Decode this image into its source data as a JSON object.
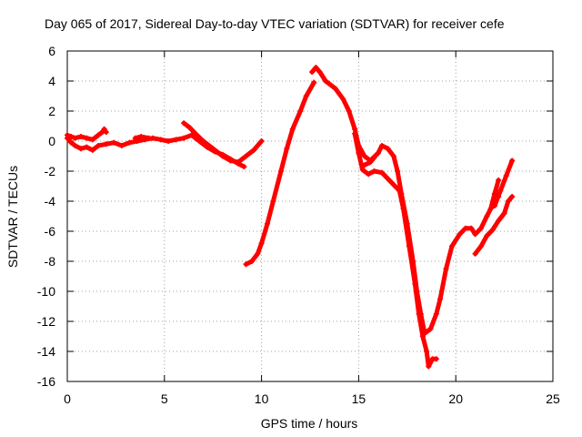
{
  "chart_data": {
    "type": "scatter",
    "title": "Day 065 of 2017, Sidereal Day-to-day VTEC variation (SDTVAR) for receiver cefe",
    "xlabel": "GPS time / hours",
    "ylabel": "SDTVAR / TECUs",
    "xlim": [
      0,
      25
    ],
    "ylim": [
      -16,
      6
    ],
    "xticks": [
      0,
      5,
      10,
      15,
      20,
      25
    ],
    "yticks": [
      -16,
      -14,
      -12,
      -10,
      -8,
      -6,
      -4,
      -2,
      0,
      2,
      4,
      6
    ],
    "grid": true,
    "legend": "none",
    "series": [
      {
        "color": "#ff0000",
        "marker": "plus",
        "segments": [
          [
            [
              0.0,
              0.4
            ],
            [
              0.2,
              0.3
            ],
            [
              0.4,
              0.2
            ],
            [
              0.7,
              0.3
            ],
            [
              1.0,
              0.2
            ],
            [
              1.3,
              0.1
            ],
            [
              1.6,
              0.4
            ],
            [
              1.8,
              0.6
            ],
            [
              1.9,
              0.8
            ],
            [
              2.0,
              0.6
            ]
          ],
          [
            [
              0.0,
              0.2
            ],
            [
              0.2,
              -0.1
            ],
            [
              0.4,
              -0.3
            ],
            [
              0.7,
              -0.5
            ],
            [
              1.0,
              -0.4
            ],
            [
              1.3,
              -0.6
            ],
            [
              1.6,
              -0.3
            ],
            [
              2.0,
              -0.2
            ],
            [
              2.4,
              -0.1
            ],
            [
              2.8,
              -0.3
            ],
            [
              3.2,
              -0.1
            ],
            [
              3.6,
              0.0
            ],
            [
              4.0,
              0.1
            ],
            [
              4.4,
              0.2
            ],
            [
              4.8,
              0.1
            ],
            [
              5.2,
              0.0
            ],
            [
              5.6,
              0.1
            ],
            [
              6.0,
              0.2
            ],
            [
              6.4,
              0.4
            ],
            [
              6.8,
              0.0
            ],
            [
              7.2,
              -0.4
            ],
            [
              7.6,
              -0.7
            ],
            [
              8.0,
              -0.9
            ],
            [
              8.4,
              -1.2
            ],
            [
              8.8,
              -1.5
            ],
            [
              9.1,
              -1.7
            ]
          ],
          [
            [
              3.5,
              0.2
            ],
            [
              3.8,
              0.3
            ],
            [
              4.2,
              0.2
            ]
          ],
          [
            [
              6.0,
              1.2
            ],
            [
              6.3,
              0.9
            ],
            [
              6.6,
              0.5
            ],
            [
              7.0,
              0.0
            ],
            [
              7.5,
              -0.5
            ],
            [
              8.0,
              -1.0
            ],
            [
              8.4,
              -1.3
            ],
            [
              8.8,
              -1.4
            ],
            [
              9.2,
              -1.0
            ],
            [
              9.6,
              -0.6
            ],
            [
              10.0,
              0.0
            ]
          ],
          [
            [
              9.2,
              -8.2
            ],
            [
              9.5,
              -8.0
            ],
            [
              9.8,
              -7.5
            ],
            [
              10.0,
              -6.8
            ],
            [
              10.3,
              -5.5
            ],
            [
              10.6,
              -4.0
            ],
            [
              11.0,
              -2.0
            ],
            [
              11.3,
              -0.5
            ],
            [
              11.6,
              0.8
            ],
            [
              12.0,
              2.0
            ],
            [
              12.3,
              3.0
            ],
            [
              12.7,
              3.9
            ]
          ],
          [
            [
              12.6,
              4.6
            ],
            [
              12.8,
              4.9
            ],
            [
              13.0,
              4.6
            ],
            [
              13.3,
              4.0
            ],
            [
              13.8,
              3.5
            ],
            [
              14.2,
              2.8
            ],
            [
              14.5,
              2.0
            ],
            [
              14.8,
              0.8
            ],
            [
              15.0,
              -0.3
            ],
            [
              15.3,
              -1.0
            ],
            [
              15.6,
              -1.3
            ],
            [
              16.0,
              -0.8
            ],
            [
              16.2,
              -0.3
            ],
            [
              16.5,
              -0.5
            ],
            [
              16.8,
              -1.0
            ],
            [
              17.0,
              -2.0
            ],
            [
              17.2,
              -3.5
            ],
            [
              17.5,
              -5.5
            ],
            [
              17.8,
              -8.0
            ],
            [
              18.0,
              -10.0
            ],
            [
              18.2,
              -11.5
            ],
            [
              18.4,
              -12.8
            ],
            [
              18.7,
              -12.5
            ],
            [
              19.0,
              -11.5
            ],
            [
              19.2,
              -10.5
            ],
            [
              19.5,
              -8.5
            ],
            [
              19.8,
              -7.0
            ],
            [
              20.2,
              -6.2
            ],
            [
              20.5,
              -5.8
            ],
            [
              20.8,
              -5.8
            ],
            [
              21.0,
              -6.2
            ],
            [
              21.3,
              -5.8
            ],
            [
              21.6,
              -5.0
            ],
            [
              21.8,
              -4.5
            ],
            [
              22.0,
              -4.0
            ],
            [
              22.2,
              -3.7
            ]
          ],
          [
            [
              14.8,
              0.5
            ],
            [
              15.0,
              -0.8
            ],
            [
              15.2,
              -1.9
            ],
            [
              15.5,
              -2.2
            ],
            [
              15.8,
              -2.0
            ],
            [
              16.2,
              -2.1
            ],
            [
              16.5,
              -2.5
            ],
            [
              16.8,
              -2.9
            ],
            [
              17.1,
              -3.3
            ],
            [
              17.3,
              -4.5
            ],
            [
              17.6,
              -7.0
            ],
            [
              17.9,
              -9.5
            ],
            [
              18.1,
              -11.5
            ],
            [
              18.3,
              -13.0
            ],
            [
              18.5,
              -14.0
            ],
            [
              18.6,
              -15.0
            ],
            [
              18.8,
              -14.5
            ],
            [
              19.0,
              -14.5
            ]
          ],
          [
            [
              15.3,
              -1.6
            ],
            [
              15.6,
              -1.4
            ],
            [
              15.8,
              -1.1
            ]
          ],
          [
            [
              21.0,
              -7.5
            ],
            [
              21.3,
              -7.0
            ],
            [
              21.6,
              -6.3
            ],
            [
              21.9,
              -5.9
            ],
            [
              22.2,
              -5.3
            ],
            [
              22.5,
              -4.8
            ],
            [
              22.7,
              -4.0
            ],
            [
              22.9,
              -3.7
            ]
          ],
          [
            [
              21.8,
              -4.5
            ],
            [
              22.0,
              -3.5
            ],
            [
              22.2,
              -2.6
            ]
          ],
          [
            [
              22.0,
              -4.3
            ],
            [
              22.3,
              -3.3
            ],
            [
              22.6,
              -2.3
            ],
            [
              22.9,
              -1.3
            ]
          ]
        ]
      }
    ]
  }
}
